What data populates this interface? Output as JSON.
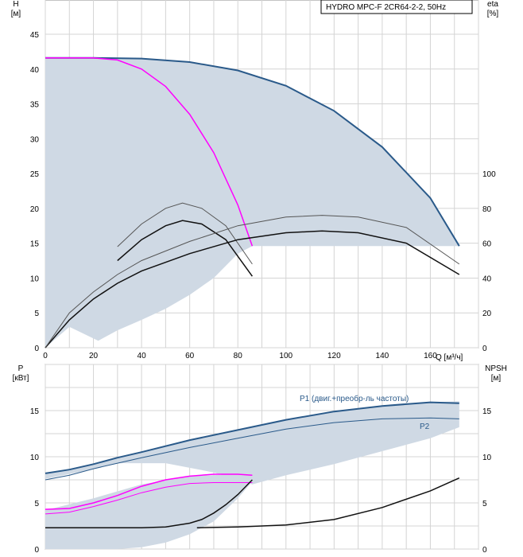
{
  "chart_data": [
    {
      "type": "line",
      "panel": "head-efficiency",
      "legend_box": "HYDRO MPC-F 2CR64-2-2, 50Hz",
      "ylabel_left": "H",
      "ylabel_left_unit": "[м]",
      "ylabel_right": "eta",
      "ylabel_right_unit": "[%]",
      "xlabel": "Q [м³/ч]",
      "xlim": [
        0,
        180
      ],
      "ylim_left": [
        0,
        45
      ],
      "ylim_right": [
        0,
        200
      ],
      "x_ticks": [
        "0",
        "20",
        "40",
        "60",
        "80",
        "100",
        "120",
        "140",
        "160"
      ],
      "y_ticks_left": [
        "0",
        "5",
        "10",
        "15",
        "20",
        "25",
        "30",
        "35",
        "40",
        "45"
      ],
      "y_ticks_right": [
        "0",
        "20",
        "40",
        "60",
        "80",
        "100"
      ],
      "grid": true,
      "colors": {
        "band": "#cfd9e4",
        "full_speed": "#2a5a8a",
        "single_pump": "#ff00ff",
        "efficiency": "#111111",
        "efficiency_thin": "#555555"
      },
      "operating_area": [
        [
          0,
          41.6
        ],
        [
          20,
          41.6
        ],
        [
          40,
          41.5
        ],
        [
          60,
          41.0
        ],
        [
          80,
          39.8
        ],
        [
          100,
          37.6
        ],
        [
          120,
          34.0
        ],
        [
          140,
          28.8
        ],
        [
          160,
          21.5
        ],
        [
          172,
          14.6
        ],
        [
          86,
          14.6
        ],
        [
          80,
          13.5
        ],
        [
          70,
          10.0
        ],
        [
          60,
          7.6
        ],
        [
          50,
          5.6
        ],
        [
          40,
          4.0
        ],
        [
          30,
          2.5
        ],
        [
          22,
          1.0
        ],
        [
          10,
          3.0
        ],
        [
          0,
          0
        ]
      ],
      "series": [
        {
          "key": "full_speed",
          "x": [
            0,
            20,
            40,
            60,
            80,
            100,
            120,
            140,
            160,
            172
          ],
          "values": [
            41.6,
            41.6,
            41.5,
            41.0,
            39.8,
            37.6,
            34.0,
            28.8,
            21.5,
            14.6
          ]
        },
        {
          "key": "single_pump",
          "x": [
            0,
            20,
            30,
            40,
            50,
            60,
            70,
            80,
            86
          ],
          "values": [
            41.6,
            41.6,
            41.3,
            40.0,
            37.5,
            33.5,
            28.0,
            20.5,
            14.6
          ]
        },
        {
          "key": "efficiency_single",
          "axis": "right",
          "x": [
            30,
            40,
            50,
            57,
            65,
            75,
            86
          ],
          "values": [
            50,
            62,
            70,
            73,
            71,
            62,
            41
          ]
        },
        {
          "key": "efficiency_single_thin",
          "axis": "right",
          "x": [
            30,
            40,
            50,
            57,
            65,
            75,
            86
          ],
          "values": [
            58,
            71,
            80,
            83,
            80,
            70,
            48
          ]
        },
        {
          "key": "efficiency_multi",
          "axis": "right",
          "x": [
            0,
            10,
            20,
            30,
            40,
            60,
            80,
            100,
            115,
            130,
            150,
            172
          ],
          "values": [
            0,
            16,
            28,
            37,
            44,
            54,
            62,
            66,
            67,
            66,
            60,
            42
          ]
        },
        {
          "key": "efficiency_multi_thin",
          "axis": "right",
          "x": [
            0,
            10,
            20,
            30,
            40,
            60,
            80,
            100,
            115,
            130,
            150,
            172
          ],
          "values": [
            0,
            20,
            32,
            42,
            50,
            61,
            70,
            75,
            76,
            75,
            69,
            48
          ]
        }
      ]
    },
    {
      "type": "line",
      "panel": "power-npsh",
      "ylabel_left": "P",
      "ylabel_left_unit": "[кВт]",
      "ylabel_right": "NPSH",
      "ylabel_right_unit": "[м]",
      "xlim": [
        0,
        180
      ],
      "ylim_left": [
        0,
        20
      ],
      "ylim_right": [
        0,
        20
      ],
      "y_ticks_left": [
        "0",
        "5",
        "10",
        "15"
      ],
      "y_ticks_right": [
        "0",
        "5",
        "10",
        "15"
      ],
      "grid": true,
      "power_area": [
        [
          0,
          8.2
        ],
        [
          20,
          9.2
        ],
        [
          40,
          10.5
        ],
        [
          60,
          11.8
        ],
        [
          80,
          12.9
        ],
        [
          100,
          14.0
        ],
        [
          120,
          14.9
        ],
        [
          140,
          15.5
        ],
        [
          160,
          15.9
        ],
        [
          172,
          16.0
        ],
        [
          172,
          13.2
        ],
        [
          160,
          12.0
        ],
        [
          140,
          10.6
        ],
        [
          120,
          9.2
        ],
        [
          100,
          8.0
        ],
        [
          86,
          7.0
        ],
        [
          70,
          8.3
        ],
        [
          50,
          9.3
        ],
        [
          30,
          9.3
        ],
        [
          15,
          8.4
        ],
        [
          0,
          7.6
        ]
      ],
      "npsh_area": [
        [
          0,
          4.2
        ],
        [
          20,
          5.5
        ],
        [
          40,
          7.0
        ],
        [
          60,
          7.9
        ],
        [
          80,
          8.1
        ],
        [
          86,
          8.0
        ],
        [
          86,
          7.3
        ],
        [
          80,
          5.5
        ],
        [
          70,
          3.0
        ],
        [
          60,
          1.6
        ],
        [
          50,
          0.7
        ],
        [
          40,
          0.2
        ],
        [
          30,
          0
        ],
        [
          0,
          0
        ]
      ],
      "series": [
        {
          "key": "p1",
          "name": "P1 (двиг.+преобр-ль частоты)",
          "x": [
            0,
            10,
            20,
            30,
            40,
            60,
            80,
            100,
            120,
            140,
            160,
            172
          ],
          "values": [
            8.2,
            8.6,
            9.2,
            9.9,
            10.5,
            11.8,
            12.9,
            14.0,
            14.9,
            15.5,
            15.9,
            15.8
          ]
        },
        {
          "key": "p2",
          "name": "P2",
          "x": [
            0,
            10,
            20,
            30,
            40,
            60,
            80,
            100,
            120,
            140,
            160,
            172
          ],
          "values": [
            7.5,
            8.0,
            8.7,
            9.3,
            9.9,
            11.0,
            12.0,
            13.0,
            13.7,
            14.1,
            14.2,
            14.1
          ]
        },
        {
          "key": "p1_single",
          "x": [
            0,
            10,
            20,
            30,
            40,
            50,
            60,
            70,
            80,
            86
          ],
          "values": [
            4.3,
            4.4,
            5.0,
            5.8,
            6.8,
            7.5,
            7.9,
            8.1,
            8.1,
            8.0
          ]
        },
        {
          "key": "p2_single",
          "x": [
            0,
            10,
            20,
            30,
            40,
            50,
            60,
            70,
            80,
            86
          ],
          "values": [
            3.8,
            4.0,
            4.6,
            5.3,
            6.1,
            6.7,
            7.1,
            7.2,
            7.2,
            7.2
          ]
        },
        {
          "key": "npsh_single",
          "x": [
            0,
            20,
            40,
            50,
            60,
            65,
            70,
            75,
            80,
            86
          ],
          "values": [
            2.3,
            2.3,
            2.3,
            2.4,
            2.8,
            3.2,
            3.9,
            4.8,
            5.9,
            7.5
          ]
        },
        {
          "key": "npsh_multi",
          "x": [
            63,
            80,
            100,
            120,
            140,
            160,
            172
          ],
          "values": [
            2.3,
            2.4,
            2.6,
            3.2,
            4.5,
            6.3,
            7.7
          ]
        }
      ]
    }
  ]
}
